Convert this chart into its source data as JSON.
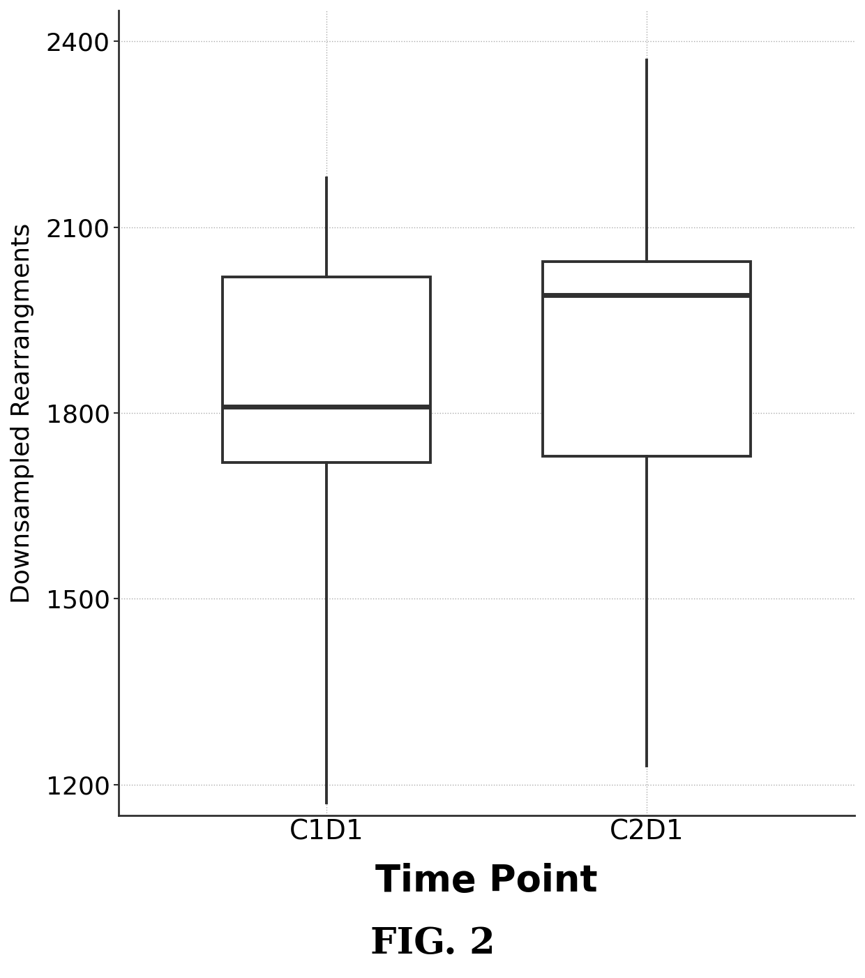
{
  "categories": [
    "C1D1",
    "C2D1"
  ],
  "boxes": [
    {
      "label": "C1D1",
      "whislo": 1170,
      "q1": 1720,
      "med": 1810,
      "q3": 2020,
      "whishi": 2180,
      "fliers": []
    },
    {
      "label": "C2D1",
      "whislo": 1230,
      "q1": 1730,
      "med": 1990,
      "q3": 2045,
      "whishi": 2370,
      "fliers": []
    }
  ],
  "ylabel": "Downsampled Rearrangments",
  "xlabel": "Time Point",
  "figcaption": "FIG. 2",
  "ylim": [
    1150,
    2450
  ],
  "yticks": [
    1200,
    1500,
    1800,
    2100,
    2400
  ],
  "box_color": "#ffffff",
  "median_color": "#303030",
  "whisker_color": "#303030",
  "box_edge_color": "#303030",
  "background_color": "#ffffff",
  "grid_color": "#aaaaaa",
  "box_width": 0.65,
  "linewidth": 2.8,
  "median_linewidth": 5.0
}
